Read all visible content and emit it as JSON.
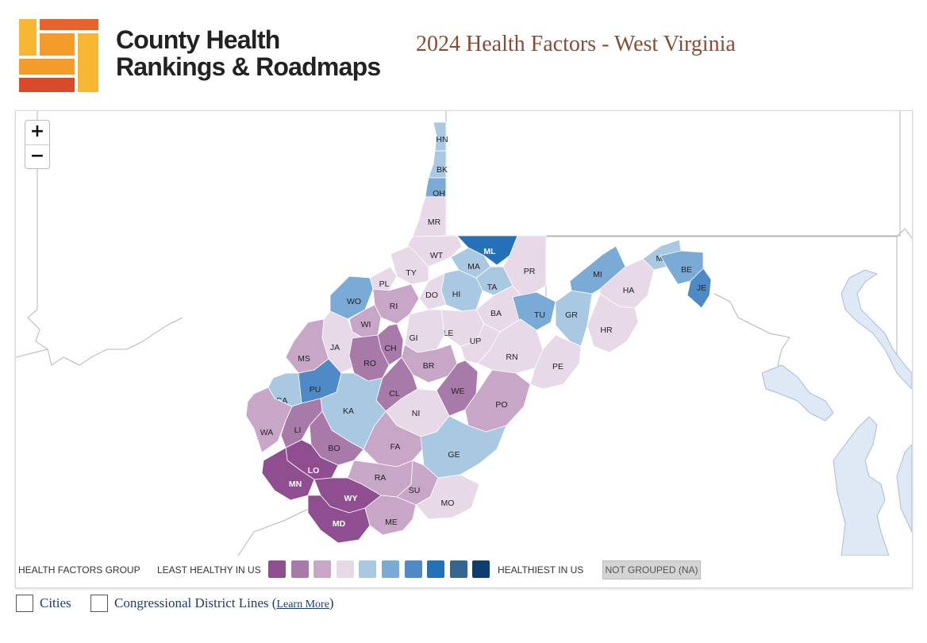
{
  "brand": {
    "line1": "County Health",
    "line2": "Rankings & Roadmaps",
    "logo_colors": [
      "#f7b733",
      "#f39c2c",
      "#e8622c",
      "#d74b2a"
    ]
  },
  "page_title": "2024 Health Factors - West Virginia",
  "zoom": {
    "in_label": "+",
    "out_label": "−"
  },
  "legend": {
    "group_label": "HEALTH FACTORS GROUP",
    "least_label": "LEAST HEALTHY IN US",
    "healthiest_label": "HEALTHIEST IN US",
    "na_label": "NOT GROUPED (NA)",
    "colors": [
      "#8f4e8f",
      "#a87aaa",
      "#c8a6c8",
      "#e7d9e7",
      "#a9c9e3",
      "#7aaad6",
      "#4f8ac6",
      "#2470b9",
      "#356591",
      "#0d3e6e"
    ]
  },
  "counties": [
    {
      "code": "HN",
      "group": 4
    },
    {
      "code": "BK",
      "group": 4
    },
    {
      "code": "OH",
      "group": 5
    },
    {
      "code": "MR",
      "group": 3
    },
    {
      "code": "WT",
      "group": 3
    },
    {
      "code": "ML",
      "group": 7
    },
    {
      "code": "MA",
      "group": 4
    },
    {
      "code": "PR",
      "group": 3
    },
    {
      "code": "TY",
      "group": 3
    },
    {
      "code": "PL",
      "group": 3
    },
    {
      "code": "TA",
      "group": 4
    },
    {
      "code": "HI",
      "group": 4
    },
    {
      "code": "DO",
      "group": 3
    },
    {
      "code": "WO",
      "group": 5
    },
    {
      "code": "RI",
      "group": 2
    },
    {
      "code": "BA",
      "group": 3
    },
    {
      "code": "TU",
      "group": 5
    },
    {
      "code": "GR",
      "group": 4
    },
    {
      "code": "MI",
      "group": 5
    },
    {
      "code": "HA",
      "group": 3
    },
    {
      "code": "MG",
      "group": 4
    },
    {
      "code": "BE",
      "group": 5
    },
    {
      "code": "JE",
      "group": 6
    },
    {
      "code": "HR",
      "group": 3
    },
    {
      "code": "WI",
      "group": 2
    },
    {
      "code": "LE",
      "group": 3
    },
    {
      "code": "GI",
      "group": 3
    },
    {
      "code": "UP",
      "group": 3
    },
    {
      "code": "CH",
      "group": 1
    },
    {
      "code": "JA",
      "group": 3
    },
    {
      "code": "MS",
      "group": 2
    },
    {
      "code": "RO",
      "group": 1
    },
    {
      "code": "BR",
      "group": 2
    },
    {
      "code": "RN",
      "group": 3
    },
    {
      "code": "PE",
      "group": 3
    },
    {
      "code": "WE",
      "group": 1
    },
    {
      "code": "PU",
      "group": 6
    },
    {
      "code": "CL",
      "group": 1
    },
    {
      "code": "CA",
      "group": 4
    },
    {
      "code": "KA",
      "group": 4
    },
    {
      "code": "NI",
      "group": 3
    },
    {
      "code": "PO",
      "group": 2
    },
    {
      "code": "WA",
      "group": 2
    },
    {
      "code": "LI",
      "group": 1
    },
    {
      "code": "BO",
      "group": 1
    },
    {
      "code": "FA",
      "group": 2
    },
    {
      "code": "GE",
      "group": 4
    },
    {
      "code": "LO",
      "group": 0
    },
    {
      "code": "MN",
      "group": 0
    },
    {
      "code": "RA",
      "group": 2
    },
    {
      "code": "SU",
      "group": 2
    },
    {
      "code": "WY",
      "group": 0
    },
    {
      "code": "MO",
      "group": 3
    },
    {
      "code": "MD",
      "group": 0
    },
    {
      "code": "ME",
      "group": 2
    }
  ],
  "options": {
    "cities_label": "Cities",
    "districts_label": "Congressional District Lines (",
    "learn_more": "Learn More",
    "close_paren": ")"
  }
}
